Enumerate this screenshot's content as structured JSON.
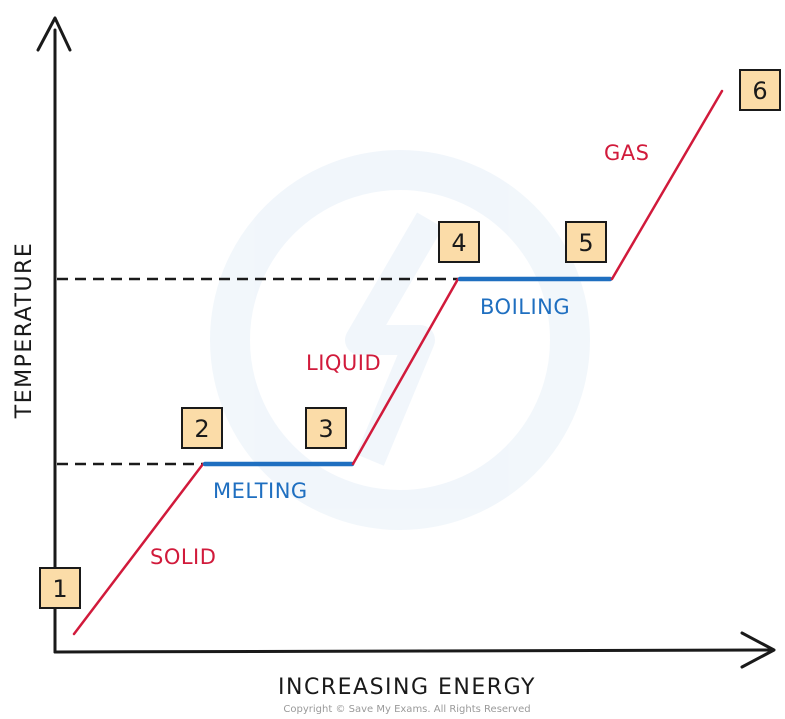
{
  "axes": {
    "x_label": "INCREASING ENERGY",
    "y_label": "TEMPERATURE"
  },
  "points": [
    {
      "label": "1"
    },
    {
      "label": "2"
    },
    {
      "label": "3"
    },
    {
      "label": "4"
    },
    {
      "label": "5"
    },
    {
      "label": "6"
    }
  ],
  "states": {
    "solid": "SOLID",
    "melting": "MELTING",
    "liquid": "LIQUID",
    "boiling": "BOILING",
    "gas": "GAS"
  },
  "copyright": "Copyright © Save My Exams. All Rights Reserved",
  "colors": {
    "state_line": "#d11a3b",
    "transition_line": "#1f6fc0",
    "box_fill": "#fbdca8",
    "axis": "#1a1a1a"
  }
}
